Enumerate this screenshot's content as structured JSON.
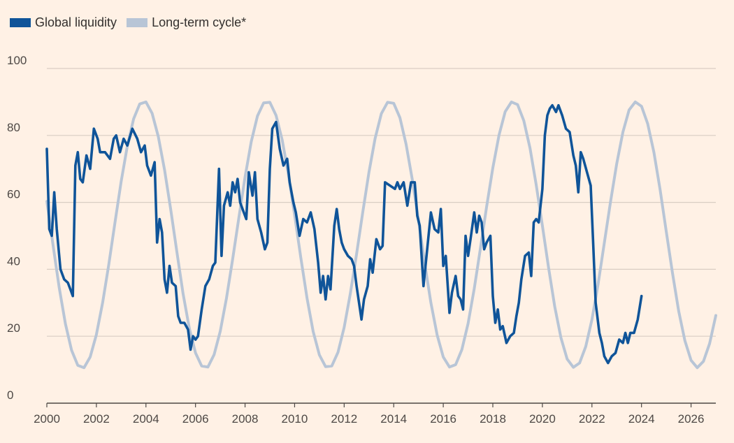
{
  "chart_data": {
    "type": "line",
    "title": "",
    "xlabel": "",
    "ylabel": "",
    "xlim": [
      2000,
      2027
    ],
    "ylim": [
      0,
      100
    ],
    "x_ticks": [
      "2000",
      "2002",
      "2004",
      "2006",
      "2008",
      "2010",
      "2012",
      "2014",
      "2016",
      "2018",
      "2020",
      "2022",
      "2024",
      "2026"
    ],
    "y_ticks": [
      "0",
      "20",
      "40",
      "60",
      "80",
      "100"
    ],
    "grid": "horizontal",
    "legend_position": "top-left",
    "series": [
      {
        "name": "Global liquidity",
        "color": "#0f5499",
        "points": [
          [
            2000.0,
            76
          ],
          [
            2000.1,
            52
          ],
          [
            2000.2,
            50
          ],
          [
            2000.3,
            63
          ],
          [
            2000.4,
            52
          ],
          [
            2000.55,
            40
          ],
          [
            2000.7,
            37
          ],
          [
            2000.85,
            36
          ],
          [
            2000.95,
            34
          ],
          [
            2001.05,
            32
          ],
          [
            2001.15,
            71
          ],
          [
            2001.25,
            75
          ],
          [
            2001.35,
            67
          ],
          [
            2001.45,
            66
          ],
          [
            2001.6,
            74
          ],
          [
            2001.75,
            70
          ],
          [
            2001.9,
            82
          ],
          [
            2002.05,
            79
          ],
          [
            2002.15,
            75
          ],
          [
            2002.35,
            75
          ],
          [
            2002.55,
            73
          ],
          [
            2002.7,
            79
          ],
          [
            2002.8,
            80
          ],
          [
            2002.95,
            75
          ],
          [
            2003.1,
            79
          ],
          [
            2003.25,
            77
          ],
          [
            2003.45,
            82
          ],
          [
            2003.65,
            79
          ],
          [
            2003.8,
            75
          ],
          [
            2003.95,
            77
          ],
          [
            2004.05,
            71
          ],
          [
            2004.2,
            68
          ],
          [
            2004.35,
            72
          ],
          [
            2004.45,
            48
          ],
          [
            2004.55,
            55
          ],
          [
            2004.65,
            51
          ],
          [
            2004.75,
            37
          ],
          [
            2004.85,
            33
          ],
          [
            2004.95,
            41
          ],
          [
            2005.05,
            36
          ],
          [
            2005.2,
            35
          ],
          [
            2005.3,
            26
          ],
          [
            2005.4,
            24
          ],
          [
            2005.55,
            24
          ],
          [
            2005.7,
            22
          ],
          [
            2005.8,
            16
          ],
          [
            2005.9,
            20
          ],
          [
            2006.0,
            19
          ],
          [
            2006.1,
            20
          ],
          [
            2006.25,
            28
          ],
          [
            2006.4,
            35
          ],
          [
            2006.55,
            37
          ],
          [
            2006.7,
            41
          ],
          [
            2006.8,
            42
          ],
          [
            2006.95,
            70
          ],
          [
            2007.05,
            44
          ],
          [
            2007.15,
            59
          ],
          [
            2007.3,
            63
          ],
          [
            2007.4,
            59
          ],
          [
            2007.5,
            66
          ],
          [
            2007.6,
            63
          ],
          [
            2007.7,
            67
          ],
          [
            2007.8,
            60
          ],
          [
            2007.9,
            58
          ],
          [
            2008.05,
            55
          ],
          [
            2008.15,
            69
          ],
          [
            2008.3,
            62
          ],
          [
            2008.4,
            69
          ],
          [
            2008.5,
            55
          ],
          [
            2008.65,
            51
          ],
          [
            2008.8,
            46
          ],
          [
            2008.9,
            48
          ],
          [
            2009.0,
            70
          ],
          [
            2009.1,
            82
          ],
          [
            2009.25,
            84
          ],
          [
            2009.4,
            76
          ],
          [
            2009.55,
            71
          ],
          [
            2009.7,
            73
          ],
          [
            2009.8,
            66
          ],
          [
            2009.95,
            60
          ],
          [
            2010.05,
            57
          ],
          [
            2010.2,
            50
          ],
          [
            2010.35,
            55
          ],
          [
            2010.5,
            54
          ],
          [
            2010.65,
            57
          ],
          [
            2010.8,
            52
          ],
          [
            2010.95,
            42
          ],
          [
            2011.05,
            33
          ],
          [
            2011.15,
            38
          ],
          [
            2011.25,
            31
          ],
          [
            2011.35,
            38
          ],
          [
            2011.45,
            34
          ],
          [
            2011.6,
            53
          ],
          [
            2011.7,
            58
          ],
          [
            2011.8,
            52
          ],
          [
            2011.9,
            48
          ],
          [
            2012.0,
            46
          ],
          [
            2012.15,
            44
          ],
          [
            2012.3,
            43
          ],
          [
            2012.4,
            41
          ],
          [
            2012.5,
            35
          ],
          [
            2012.6,
            30
          ],
          [
            2012.7,
            25
          ],
          [
            2012.8,
            31
          ],
          [
            2012.95,
            35
          ],
          [
            2013.05,
            43
          ],
          [
            2013.15,
            39
          ],
          [
            2013.3,
            49
          ],
          [
            2013.45,
            46
          ],
          [
            2013.55,
            47
          ],
          [
            2013.65,
            66
          ],
          [
            2013.85,
            65
          ],
          [
            2014.05,
            64
          ],
          [
            2014.15,
            66
          ],
          [
            2014.25,
            64
          ],
          [
            2014.4,
            66
          ],
          [
            2014.55,
            59
          ],
          [
            2014.7,
            66
          ],
          [
            2014.85,
            66
          ],
          [
            2014.95,
            56
          ],
          [
            2015.05,
            53
          ],
          [
            2015.2,
            35
          ],
          [
            2015.35,
            46
          ],
          [
            2015.5,
            57
          ],
          [
            2015.65,
            52
          ],
          [
            2015.8,
            51
          ],
          [
            2015.9,
            58
          ],
          [
            2016.0,
            41
          ],
          [
            2016.1,
            44
          ],
          [
            2016.25,
            27
          ],
          [
            2016.35,
            33
          ],
          [
            2016.5,
            38
          ],
          [
            2016.6,
            32
          ],
          [
            2016.7,
            31
          ],
          [
            2016.8,
            28
          ],
          [
            2016.9,
            50
          ],
          [
            2017.0,
            44
          ],
          [
            2017.1,
            49
          ],
          [
            2017.25,
            57
          ],
          [
            2017.35,
            51
          ],
          [
            2017.45,
            56
          ],
          [
            2017.55,
            54
          ],
          [
            2017.65,
            46
          ],
          [
            2017.75,
            48
          ],
          [
            2017.9,
            50
          ],
          [
            2018.0,
            32
          ],
          [
            2018.1,
            24
          ],
          [
            2018.2,
            28
          ],
          [
            2018.3,
            22
          ],
          [
            2018.4,
            23
          ],
          [
            2018.55,
            18
          ],
          [
            2018.7,
            20
          ],
          [
            2018.85,
            21
          ],
          [
            2018.95,
            26
          ],
          [
            2019.05,
            30
          ],
          [
            2019.15,
            37
          ],
          [
            2019.3,
            44
          ],
          [
            2019.45,
            45
          ],
          [
            2019.55,
            38
          ],
          [
            2019.65,
            54
          ],
          [
            2019.75,
            55
          ],
          [
            2019.85,
            54
          ],
          [
            2020.0,
            64
          ],
          [
            2020.1,
            80
          ],
          [
            2020.2,
            86
          ],
          [
            2020.3,
            88
          ],
          [
            2020.4,
            89
          ],
          [
            2020.55,
            87
          ],
          [
            2020.65,
            89
          ],
          [
            2020.8,
            86
          ],
          [
            2020.95,
            82
          ],
          [
            2021.1,
            81
          ],
          [
            2021.25,
            74
          ],
          [
            2021.35,
            71
          ],
          [
            2021.45,
            63
          ],
          [
            2021.55,
            75
          ],
          [
            2021.65,
            73
          ],
          [
            2021.8,
            69
          ],
          [
            2021.95,
            65
          ],
          [
            2022.05,
            48
          ],
          [
            2022.15,
            30
          ],
          [
            2022.3,
            21
          ],
          [
            2022.4,
            18
          ],
          [
            2022.5,
            14
          ],
          [
            2022.65,
            12
          ],
          [
            2022.8,
            14
          ],
          [
            2022.95,
            15
          ],
          [
            2023.1,
            19
          ],
          [
            2023.25,
            18
          ],
          [
            2023.35,
            21
          ],
          [
            2023.45,
            18
          ],
          [
            2023.55,
            21
          ],
          [
            2023.7,
            21
          ],
          [
            2023.85,
            25
          ],
          [
            2024.0,
            32
          ]
        ]
      },
      {
        "name": "Long-term cycle*",
        "color": "#b8c5d6",
        "points": [
          [
            2000.0,
            60.3
          ],
          [
            2000.25,
            47.2
          ],
          [
            2000.5,
            34.5
          ],
          [
            2000.75,
            23.7
          ],
          [
            2001.0,
            15.8
          ],
          [
            2001.25,
            11.3
          ],
          [
            2001.5,
            10.6
          ],
          [
            2001.75,
            13.8
          ],
          [
            2002.0,
            20.5
          ],
          [
            2002.25,
            30.0
          ],
          [
            2002.5,
            41.4
          ],
          [
            2002.75,
            54.0
          ],
          [
            2003.0,
            66.2
          ],
          [
            2003.25,
            76.9
          ],
          [
            2003.5,
            84.9
          ],
          [
            2003.75,
            89.4
          ],
          [
            2004.0,
            90.0
          ],
          [
            2004.25,
            86.6
          ],
          [
            2004.5,
            79.6
          ],
          [
            2004.75,
            69.7
          ],
          [
            2005.0,
            57.9
          ],
          [
            2005.25,
            45.1
          ],
          [
            2005.5,
            32.7
          ],
          [
            2005.75,
            22.4
          ],
          [
            2006.0,
            15.0
          ],
          [
            2006.25,
            11.1
          ],
          [
            2006.5,
            10.8
          ],
          [
            2006.75,
            14.5
          ],
          [
            2007.0,
            21.5
          ],
          [
            2007.25,
            31.4
          ],
          [
            2007.5,
            43.0
          ],
          [
            2007.75,
            55.4
          ],
          [
            2008.0,
            67.6
          ],
          [
            2008.25,
            78.1
          ],
          [
            2008.5,
            85.8
          ],
          [
            2008.75,
            89.7
          ],
          [
            2009.0,
            89.9
          ],
          [
            2009.25,
            86.0
          ],
          [
            2009.5,
            78.6
          ],
          [
            2009.75,
            68.3
          ],
          [
            2010.0,
            56.3
          ],
          [
            2010.25,
            43.5
          ],
          [
            2010.5,
            31.4
          ],
          [
            2010.75,
            21.4
          ],
          [
            2011.0,
            14.4
          ],
          [
            2011.25,
            10.9
          ],
          [
            2011.5,
            11.1
          ],
          [
            2011.75,
            15.2
          ],
          [
            2012.0,
            22.6
          ],
          [
            2012.25,
            32.8
          ],
          [
            2012.5,
            44.6
          ],
          [
            2012.75,
            57.0
          ],
          [
            2013.0,
            69.0
          ],
          [
            2013.25,
            79.1
          ],
          [
            2013.5,
            86.5
          ],
          [
            2013.75,
            89.9
          ],
          [
            2014.0,
            89.6
          ],
          [
            2014.25,
            85.3
          ],
          [
            2014.5,
            77.4
          ],
          [
            2014.75,
            66.8
          ],
          [
            2015.0,
            54.6
          ],
          [
            2015.25,
            41.9
          ],
          [
            2015.5,
            30.0
          ],
          [
            2015.75,
            20.4
          ],
          [
            2016.0,
            13.8
          ],
          [
            2016.25,
            10.8
          ],
          [
            2016.5,
            11.5
          ],
          [
            2016.75,
            16.0
          ],
          [
            2017.0,
            23.8
          ],
          [
            2017.25,
            34.2
          ],
          [
            2017.5,
            46.3
          ],
          [
            2017.75,
            58.7
          ],
          [
            2018.0,
            70.3
          ],
          [
            2018.25,
            80.1
          ],
          [
            2018.5,
            87.1
          ],
          [
            2018.75,
            90.0
          ],
          [
            2019.0,
            89.2
          ],
          [
            2019.25,
            84.4
          ],
          [
            2019.5,
            76.2
          ],
          [
            2019.75,
            65.3
          ],
          [
            2020.0,
            53.0
          ],
          [
            2020.25,
            40.4
          ],
          [
            2020.5,
            28.8
          ],
          [
            2020.75,
            19.5
          ],
          [
            2021.0,
            13.2
          ],
          [
            2021.25,
            10.7
          ],
          [
            2021.5,
            12.0
          ],
          [
            2021.75,
            16.9
          ],
          [
            2022.0,
            25.0
          ],
          [
            2022.25,
            35.6
          ],
          [
            2022.5,
            47.9
          ],
          [
            2022.75,
            60.2
          ],
          [
            2023.0,
            71.5
          ],
          [
            2023.25,
            81.0
          ],
          [
            2023.5,
            87.6
          ],
          [
            2023.75,
            90.0
          ],
          [
            2024.0,
            88.7
          ],
          [
            2024.25,
            83.5
          ],
          [
            2024.5,
            75.0
          ],
          [
            2024.75,
            63.8
          ],
          [
            2025.0,
            51.3
          ],
          [
            2025.25,
            38.9
          ],
          [
            2025.5,
            27.6
          ],
          [
            2025.75,
            18.7
          ],
          [
            2026.0,
            12.8
          ],
          [
            2026.25,
            10.6
          ],
          [
            2026.5,
            12.5
          ],
          [
            2026.75,
            17.8
          ],
          [
            2027.0,
            26.2
          ]
        ]
      }
    ]
  }
}
